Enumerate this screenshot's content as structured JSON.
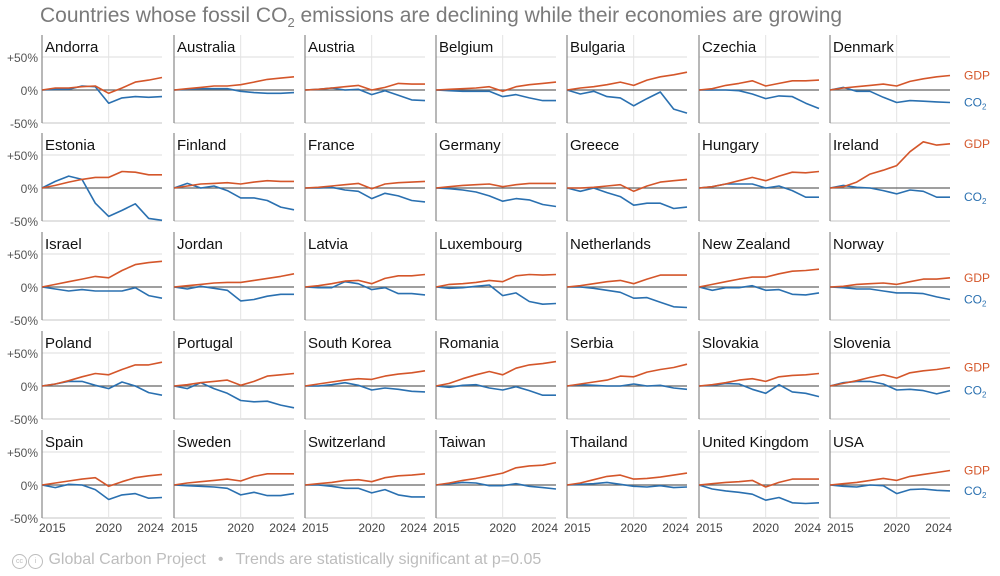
{
  "title_prefix": "Countries whose fossil CO",
  "title_sub": "2",
  "title_suffix": " emissions are declining while their economies are growing",
  "footer": {
    "source": "Global Carbon Project",
    "separator": "•",
    "note": "Trends are statistically significant at p=0.05"
  },
  "colors": {
    "gdp": "#d4562a",
    "co2": "#2a70b0",
    "grid": "#e3e3e3",
    "zero": "#666666",
    "axis": "#888888"
  },
  "chart_data": {
    "type": "line",
    "title": "Countries whose fossil CO2 emissions are declining while their economies are growing",
    "x": [
      2015,
      2016,
      2017,
      2018,
      2019,
      2020,
      2021,
      2022,
      2023,
      2024
    ],
    "x_ticks": [
      "2015",
      "2020",
      "2024"
    ],
    "y_ticks": [
      "+50%",
      "0%",
      "-50%"
    ],
    "ylim": [
      -50,
      50
    ],
    "legend": {
      "gdp": "GDP",
      "co2_prefix": "CO",
      "co2_sub": "2",
      "placement": "right"
    },
    "panels": [
      {
        "name": "Andorra",
        "gdp": [
          0,
          3,
          3,
          5,
          6,
          -5,
          3,
          12,
          15,
          19
        ],
        "co2": [
          0,
          1,
          1,
          6,
          5,
          -20,
          -12,
          -10,
          -11,
          -10
        ]
      },
      {
        "name": "Australia",
        "gdp": [
          0,
          2,
          4,
          6,
          6,
          8,
          12,
          16,
          18,
          20
        ],
        "co2": [
          0,
          1,
          2,
          2,
          2,
          -2,
          -4,
          -5,
          -5,
          -4
        ]
      },
      {
        "name": "Austria",
        "gdp": [
          0,
          1,
          3,
          5,
          7,
          0,
          4,
          10,
          9,
          9
        ],
        "co2": [
          0,
          1,
          3,
          0,
          1,
          -7,
          -1,
          -8,
          -15,
          -16
        ]
      },
      {
        "name": "Belgium",
        "gdp": [
          0,
          1,
          2,
          3,
          5,
          -2,
          5,
          8,
          10,
          12
        ],
        "co2": [
          0,
          -1,
          -2,
          -2,
          -2,
          -10,
          -7,
          -12,
          -16,
          -16
        ]
      },
      {
        "name": "Bulgaria",
        "gdp": [
          0,
          3,
          5,
          8,
          12,
          7,
          15,
          20,
          23,
          27
        ],
        "co2": [
          0,
          -6,
          -2,
          -10,
          -12,
          -24,
          -13,
          -3,
          -29,
          -35
        ]
      },
      {
        "name": "Czechia",
        "gdp": [
          0,
          2,
          7,
          10,
          14,
          6,
          10,
          14,
          14,
          15
        ],
        "co2": [
          0,
          0,
          0,
          -1,
          -6,
          -13,
          -9,
          -10,
          -20,
          -28
        ]
      },
      {
        "name": "Denmark",
        "gdp": [
          0,
          3,
          5,
          7,
          9,
          6,
          13,
          17,
          20,
          22
        ],
        "co2": [
          0,
          4,
          -2,
          -2,
          -11,
          -19,
          -16,
          -17,
          -18,
          -19
        ]
      },
      {
        "name": "Estonia",
        "gdp": [
          0,
          4,
          9,
          13,
          16,
          16,
          25,
          24,
          20,
          20
        ],
        "co2": [
          0,
          10,
          18,
          13,
          -23,
          -43,
          -34,
          -24,
          -46,
          -49
        ]
      },
      {
        "name": "Finland",
        "gdp": [
          0,
          3,
          6,
          7,
          8,
          6,
          9,
          11,
          10,
          10
        ],
        "co2": [
          0,
          7,
          0,
          3,
          -4,
          -15,
          -15,
          -19,
          -29,
          -33
        ]
      },
      {
        "name": "France",
        "gdp": [
          0,
          1,
          3,
          5,
          7,
          -1,
          6,
          8,
          9,
          10
        ],
        "co2": [
          0,
          0,
          1,
          -3,
          -5,
          -16,
          -8,
          -12,
          -19,
          -21
        ]
      },
      {
        "name": "Germany",
        "gdp": [
          0,
          2,
          4,
          5,
          6,
          2,
          5,
          7,
          7,
          7
        ],
        "co2": [
          0,
          -1,
          -3,
          -6,
          -12,
          -20,
          -16,
          -18,
          -25,
          -28
        ]
      },
      {
        "name": "Greece",
        "gdp": [
          0,
          0,
          1,
          3,
          5,
          -5,
          3,
          9,
          11,
          13
        ],
        "co2": [
          0,
          -5,
          0,
          -7,
          -13,
          -26,
          -23,
          -23,
          -31,
          -29
        ]
      },
      {
        "name": "Hungary",
        "gdp": [
          0,
          2,
          6,
          11,
          16,
          11,
          18,
          24,
          23,
          25
        ],
        "co2": [
          0,
          2,
          6,
          6,
          6,
          0,
          3,
          -4,
          -14,
          -14
        ]
      },
      {
        "name": "Ireland",
        "gdp": [
          0,
          2,
          9,
          21,
          27,
          34,
          55,
          70,
          65,
          67
        ],
        "co2": [
          0,
          4,
          1,
          0,
          -4,
          -9,
          -3,
          -5,
          -14,
          -14
        ]
      },
      {
        "name": "Israel",
        "gdp": [
          0,
          4,
          8,
          12,
          16,
          14,
          25,
          34,
          37,
          39
        ],
        "co2": [
          0,
          -3,
          -6,
          -4,
          -6,
          -6,
          -6,
          -1,
          -13,
          -17
        ]
      },
      {
        "name": "Jordan",
        "gdp": [
          0,
          2,
          4,
          6,
          7,
          7,
          10,
          13,
          16,
          20
        ],
        "co2": [
          0,
          -3,
          1,
          -2,
          -5,
          -21,
          -19,
          -14,
          -11,
          -11
        ]
      },
      {
        "name": "Latvia",
        "gdp": [
          0,
          2,
          5,
          9,
          10,
          5,
          13,
          17,
          17,
          19
        ],
        "co2": [
          0,
          -1,
          -1,
          8,
          5,
          -4,
          -1,
          -10,
          -10,
          -12
        ]
      },
      {
        "name": "Luxembourg",
        "gdp": [
          0,
          4,
          5,
          7,
          10,
          8,
          17,
          19,
          18,
          19
        ],
        "co2": [
          0,
          -2,
          -1,
          1,
          3,
          -13,
          -9,
          -22,
          -26,
          -25
        ]
      },
      {
        "name": "Netherlands",
        "gdp": [
          0,
          2,
          5,
          8,
          10,
          5,
          12,
          18,
          18,
          18
        ],
        "co2": [
          0,
          0,
          -2,
          -5,
          -8,
          -17,
          -16,
          -23,
          -30,
          -31
        ]
      },
      {
        "name": "New Zealand",
        "gdp": [
          0,
          4,
          8,
          12,
          15,
          15,
          20,
          24,
          25,
          27
        ],
        "co2": [
          0,
          -5,
          -1,
          -1,
          2,
          -5,
          -4,
          -11,
          -12,
          -9
        ]
      },
      {
        "name": "Norway",
        "gdp": [
          0,
          1,
          4,
          5,
          6,
          4,
          8,
          12,
          12,
          14
        ],
        "co2": [
          0,
          -1,
          -3,
          -3,
          -6,
          -9,
          -9,
          -10,
          -15,
          -19
        ]
      },
      {
        "name": "Poland",
        "gdp": [
          0,
          3,
          8,
          14,
          19,
          17,
          25,
          32,
          32,
          36
        ],
        "co2": [
          0,
          3,
          7,
          7,
          1,
          -4,
          6,
          0,
          -10,
          -14
        ]
      },
      {
        "name": "Portugal",
        "gdp": [
          0,
          2,
          5,
          7,
          9,
          1,
          7,
          15,
          17,
          19
        ],
        "co2": [
          0,
          -4,
          5,
          -4,
          -11,
          -22,
          -24,
          -23,
          -29,
          -33
        ]
      },
      {
        "name": "South Korea",
        "gdp": [
          0,
          3,
          6,
          9,
          11,
          10,
          15,
          18,
          20,
          23
        ],
        "co2": [
          0,
          0,
          2,
          5,
          1,
          -6,
          -3,
          -5,
          -8,
          -9
        ]
      },
      {
        "name": "Romania",
        "gdp": [
          0,
          4,
          11,
          17,
          22,
          17,
          27,
          32,
          34,
          37
        ],
        "co2": [
          0,
          -2,
          1,
          2,
          -3,
          -6,
          -1,
          -7,
          -14,
          -14
        ]
      },
      {
        "name": "Serbia",
        "gdp": [
          0,
          3,
          6,
          9,
          15,
          14,
          21,
          25,
          28,
          33
        ],
        "co2": [
          0,
          2,
          1,
          0,
          0,
          3,
          0,
          1,
          -3,
          -5
        ]
      },
      {
        "name": "Slovakia",
        "gdp": [
          0,
          2,
          5,
          9,
          11,
          7,
          14,
          16,
          17,
          19
        ],
        "co2": [
          0,
          1,
          4,
          3,
          -5,
          -11,
          2,
          -9,
          -11,
          -16
        ]
      },
      {
        "name": "Slovenia",
        "gdp": [
          0,
          4,
          8,
          13,
          17,
          12,
          20,
          23,
          25,
          28
        ],
        "co2": [
          0,
          5,
          7,
          7,
          3,
          -6,
          -5,
          -7,
          -12,
          -7
        ]
      },
      {
        "name": "Spain",
        "gdp": [
          0,
          3,
          6,
          9,
          11,
          -2,
          5,
          11,
          14,
          16
        ],
        "co2": [
          0,
          -4,
          1,
          0,
          -7,
          -22,
          -15,
          -13,
          -20,
          -19
        ]
      },
      {
        "name": "Sweden",
        "gdp": [
          0,
          3,
          5,
          7,
          9,
          6,
          13,
          17,
          17,
          17
        ],
        "co2": [
          0,
          -1,
          -2,
          -3,
          -5,
          -15,
          -11,
          -16,
          -16,
          -13
        ]
      },
      {
        "name": "Switzerland",
        "gdp": [
          0,
          2,
          4,
          7,
          8,
          5,
          11,
          14,
          15,
          17
        ],
        "co2": [
          0,
          0,
          -2,
          -5,
          -5,
          -12,
          -7,
          -15,
          -18,
          -18
        ]
      },
      {
        "name": "Taiwan",
        "gdp": [
          0,
          3,
          7,
          10,
          14,
          18,
          26,
          29,
          30,
          34
        ],
        "co2": [
          0,
          2,
          4,
          3,
          -1,
          -1,
          2,
          -2,
          -4,
          -6
        ]
      },
      {
        "name": "Thailand",
        "gdp": [
          0,
          3,
          8,
          13,
          15,
          9,
          10,
          12,
          15,
          18
        ],
        "co2": [
          0,
          1,
          2,
          4,
          1,
          -2,
          -3,
          -1,
          -4,
          -3
        ]
      },
      {
        "name": "United Kingdom",
        "gdp": [
          0,
          2,
          4,
          5,
          7,
          -3,
          4,
          9,
          9,
          9
        ],
        "co2": [
          0,
          -6,
          -9,
          -11,
          -14,
          -23,
          -19,
          -27,
          -28,
          -27
        ]
      },
      {
        "name": "USA",
        "gdp": [
          0,
          2,
          4,
          7,
          10,
          7,
          13,
          16,
          19,
          22
        ],
        "co2": [
          0,
          -2,
          -3,
          0,
          -1,
          -13,
          -7,
          -6,
          -8,
          -9
        ]
      }
    ]
  }
}
